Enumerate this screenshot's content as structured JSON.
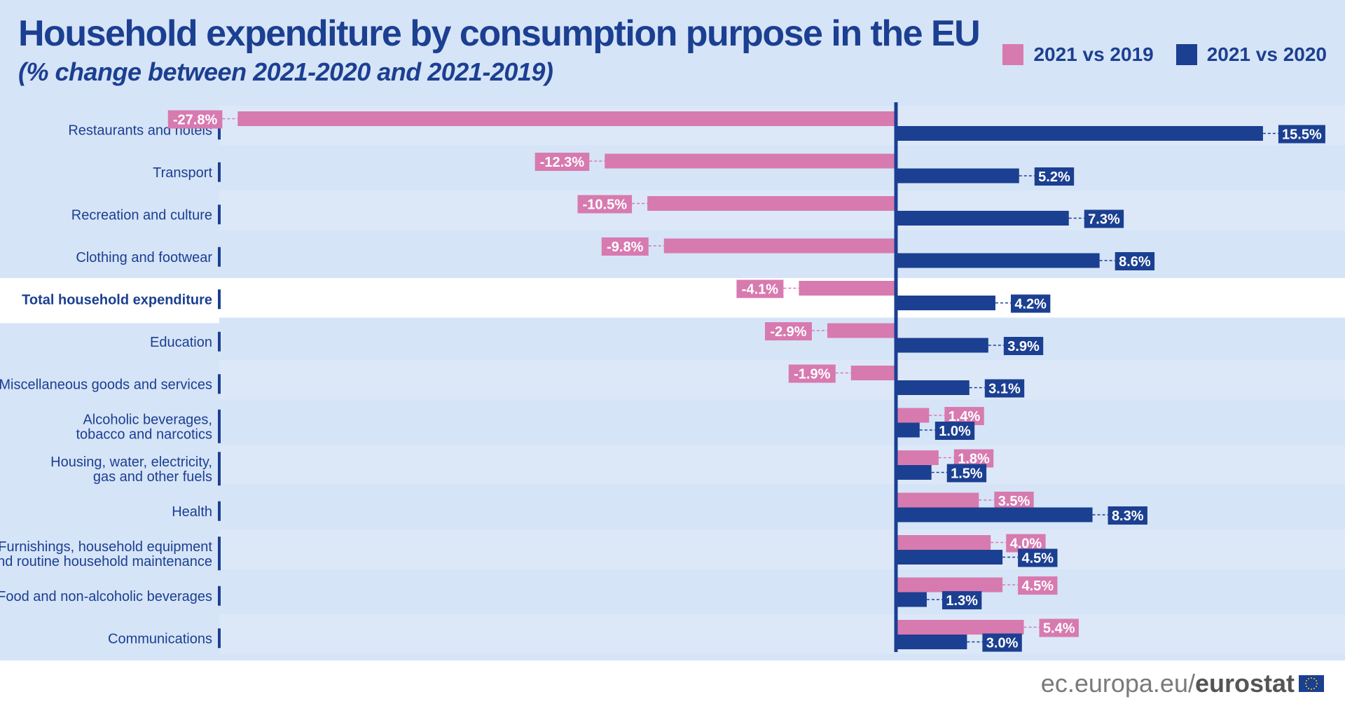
{
  "header": {
    "title": "Household expenditure by consumption purpose in the EU",
    "subtitle": "(% change between 2021-2020 and 2021-2019)"
  },
  "legend": [
    {
      "label": "2021 vs 2019",
      "color": "#d77ab0"
    },
    {
      "label": "2021 vs 2020",
      "color": "#1b3f91"
    }
  ],
  "footer": {
    "url_prefix": "ec.europa.eu/",
    "url_brand": "eurostat"
  },
  "chart_data": {
    "type": "bar",
    "orientation": "horizontal",
    "title": "Household expenditure by consumption purpose in the EU",
    "subtitle": "(% change between 2021-2020 and 2021-2019)",
    "categories": [
      "Restaurants and hotels",
      "Transport",
      "Recreation and culture",
      "Clothing and footwear",
      "Total household expenditure",
      "Education",
      "Miscellaneous goods and services",
      "Alcoholic beverages,\ntobacco and narcotics",
      "Housing, water, electricity,\ngas and other fuels",
      "Health",
      "Furnishings, household equipment\nand routine household maintenance",
      "Food and non-alcoholic beverages",
      "Communications"
    ],
    "highlight_category": "Total household expenditure",
    "series": [
      {
        "name": "2021 vs 2019",
        "color": "#d77ab0",
        "values": [
          -27.8,
          -12.3,
          -10.5,
          -9.8,
          -4.1,
          -2.9,
          -1.9,
          1.4,
          1.8,
          3.5,
          4.0,
          4.5,
          5.4
        ],
        "labels": [
          "-27.8%",
          "-12.3%",
          "-10.5%",
          "-9.8%",
          "-4.1%",
          "-2.9%",
          "-1.9%",
          "1.4%",
          "1.8%",
          "3.5%",
          "4.0%",
          "4.5%",
          "5.4%"
        ]
      },
      {
        "name": "2021 vs 2020",
        "color": "#1b3f91",
        "values": [
          15.5,
          5.2,
          7.3,
          8.6,
          4.2,
          3.9,
          3.1,
          1.0,
          1.5,
          8.3,
          4.5,
          1.3,
          3.0
        ],
        "labels": [
          "15.5%",
          "5.2%",
          "7.3%",
          "8.6%",
          "4.2%",
          "3.9%",
          "3.1%",
          "1.0%",
          "1.5%",
          "8.3%",
          "4.5%",
          "1.3%",
          "3.0%"
        ]
      }
    ],
    "xlim": [
      -28.5,
      17.5
    ],
    "grid": false,
    "legend_position": "top-right"
  }
}
